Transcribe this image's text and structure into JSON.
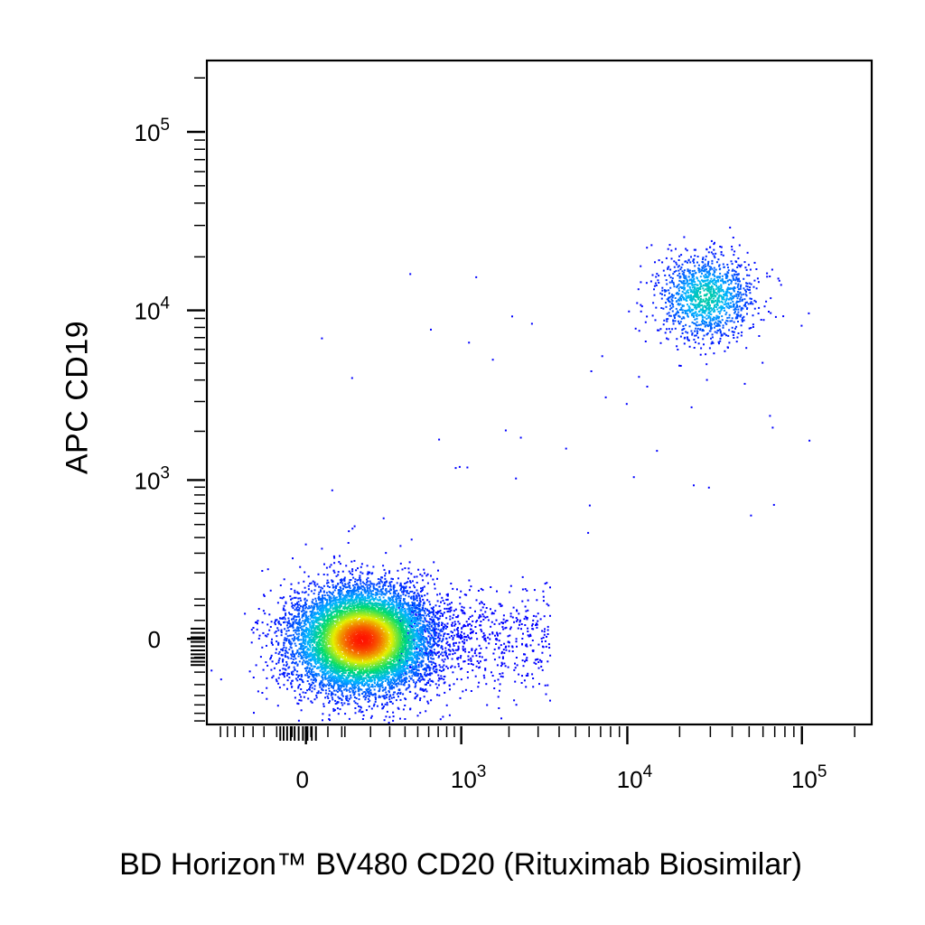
{
  "chart_data": {
    "type": "scatter",
    "title": "",
    "xlabel": "BD Horizon™ BV480 CD20 (Rituximab Biosimilar)",
    "ylabel": "APC  CD19",
    "x_scale": "biexponential",
    "y_scale": "biexponential",
    "x_ticks": [
      {
        "value": 0,
        "base": "0",
        "exp": ""
      },
      {
        "value": 1000,
        "base": "10",
        "exp": "3"
      },
      {
        "value": 10000,
        "base": "10",
        "exp": "4"
      },
      {
        "value": 100000,
        "base": "10",
        "exp": "5"
      }
    ],
    "y_ticks": [
      {
        "value": 0,
        "base": "0",
        "exp": ""
      },
      {
        "value": 1000,
        "base": "10",
        "exp": "3"
      },
      {
        "value": 10000,
        "base": "10",
        "exp": "4"
      },
      {
        "value": 100000,
        "base": "10",
        "exp": "5"
      }
    ],
    "xlim": [
      -400,
      250000
    ],
    "ylim": [
      -300,
      250000
    ],
    "grid": false,
    "legend": "none",
    "color_map": "density: blue → cyan → green → yellow → red",
    "series": [
      {
        "type": "density-cluster",
        "center": {
          "x": 160,
          "y": 0
        },
        "spread_x": 55,
        "spread_y": 50,
        "event_count": 9000,
        "peak_color": "#ff1a00"
      },
      {
        "type": "density-cluster",
        "center": {
          "x": 28000,
          "y": 12000
        },
        "spread_x": 0.16,
        "spread_y": 0.15,
        "event_count": 1300,
        "peak_color": "#00c8e6"
      },
      {
        "type": "sparse-tail",
        "from": {
          "x": 350,
          "y": 0
        },
        "to": {
          "x": 3500,
          "y": 0
        },
        "event_count": 700
      }
    ],
    "colors": {
      "low": "#0000ff",
      "mid_low": "#00c8ff",
      "mid": "#00e060",
      "mid_high": "#f0f000",
      "high": "#ff0000"
    }
  }
}
